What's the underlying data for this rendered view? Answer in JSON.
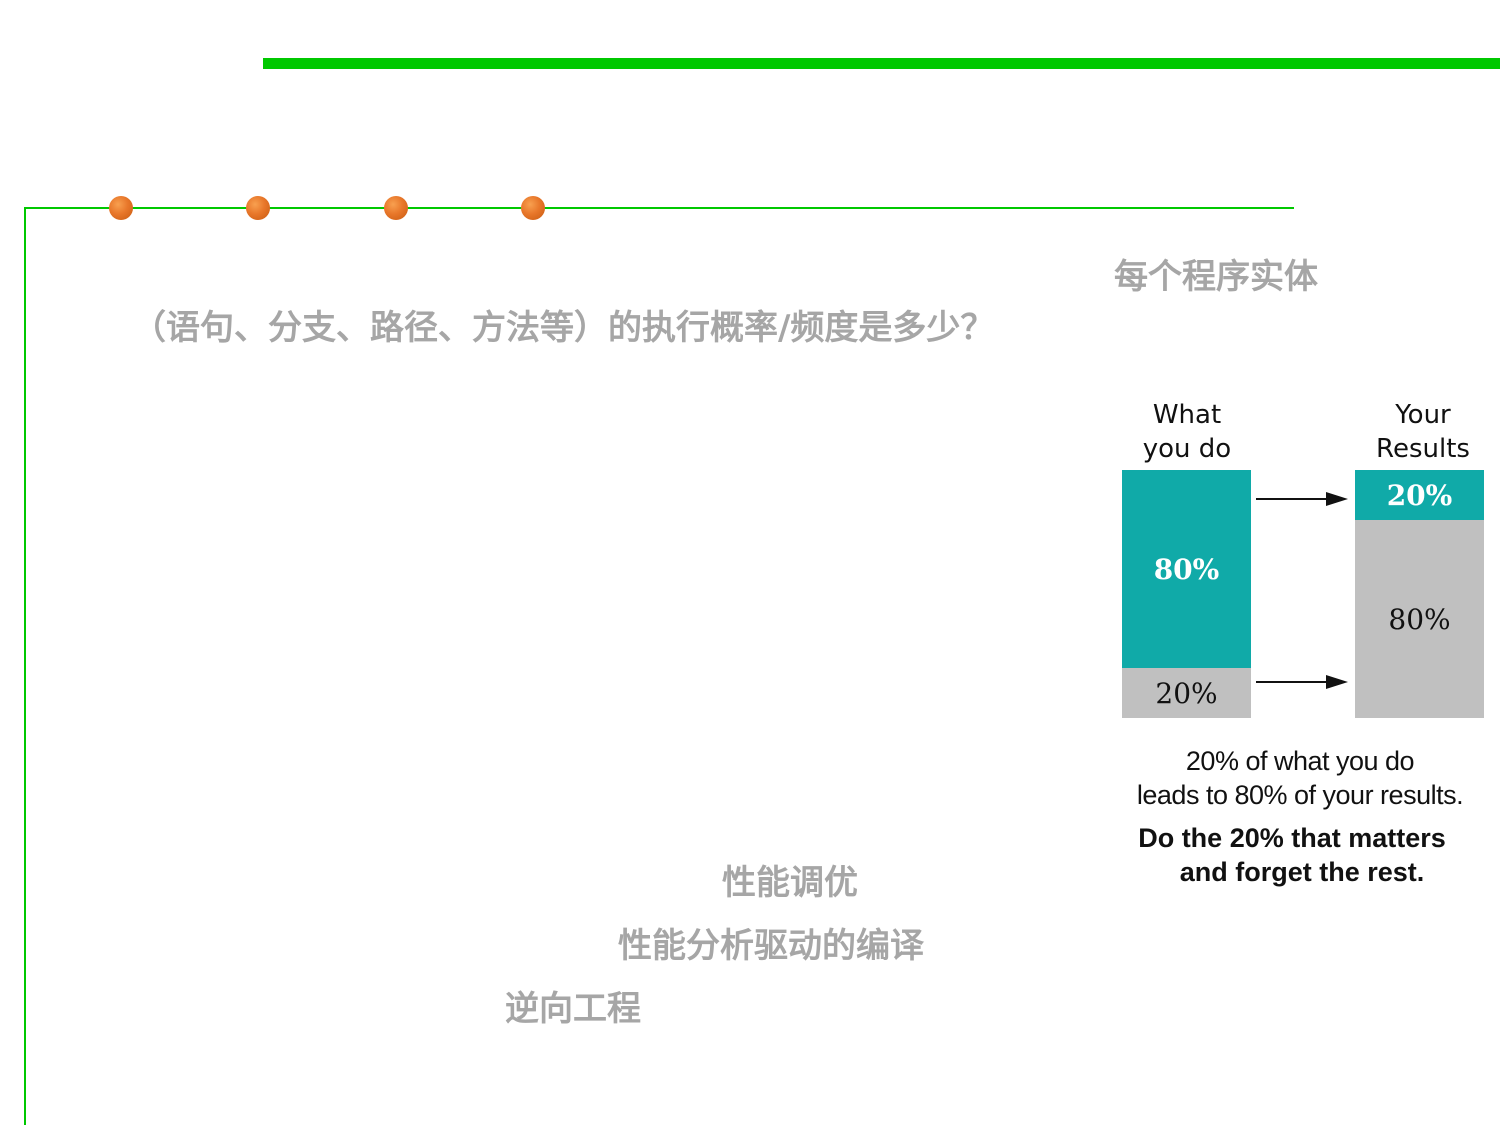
{
  "slide": {
    "line1": "每个程序实体",
    "line2": "（语句、分支、路径、方法等）的执行概率/频度是多少？",
    "applications": [
      "性能调优",
      "性能分析驱动的编译",
      "逆向工程"
    ]
  },
  "figure": {
    "left_header": [
      "What",
      "you do"
    ],
    "right_header": [
      "Your",
      "Results"
    ],
    "left_bar": {
      "top_label": "80%",
      "top_value": 80,
      "bottom_label": "20%",
      "bottom_value": 20
    },
    "right_bar": {
      "top_label": "20%",
      "top_value": 20,
      "bottom_label": "80%",
      "bottom_value": 80
    },
    "caption_lines": [
      "20% of what you do",
      "leads to 80% of your results."
    ],
    "bold_lines": [
      "Do the 20% that matters",
      "and forget the rest."
    ]
  },
  "colors": {
    "accent_green": "#00c800",
    "bullet_orange": "#e8772a",
    "teal": "#10aaa8",
    "grey_bar": "#c0c0c0",
    "muted_text": "#a6a6a6"
  }
}
